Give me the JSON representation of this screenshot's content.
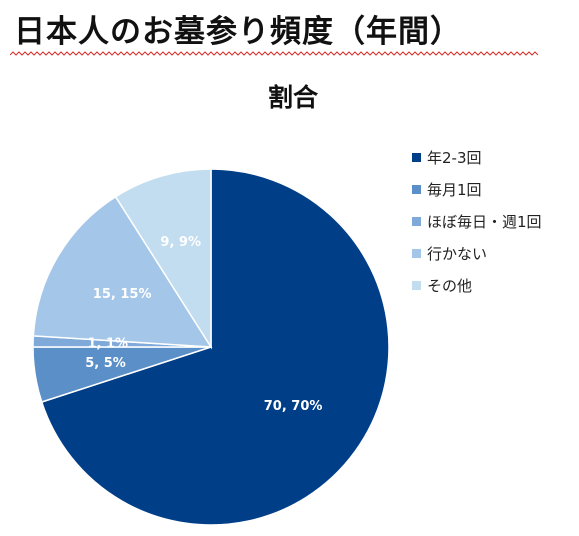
{
  "header": {
    "title": "日本人のお墓参り頻度（年間）"
  },
  "chart_data": {
    "type": "pie",
    "title": "割合",
    "categories": [
      "年2-3回",
      "毎月1回",
      "ほぼ毎日・週1回",
      "行かない",
      "その他"
    ],
    "values": [
      70,
      5,
      1,
      15,
      9
    ],
    "data_labels": [
      "70, 70%",
      "5, 5%",
      "1, 1%",
      "15, 15%",
      "9, 9%"
    ],
    "colors": [
      "#003f88",
      "#5b8fc7",
      "#7fa9d9",
      "#a4c6e8",
      "#c2dcf0"
    ],
    "start_angle": "12 o'clock",
    "direction": "clockwise",
    "legend": "right"
  },
  "style": {
    "underline_color": "#d6322a",
    "label_color": "#ffffff"
  }
}
